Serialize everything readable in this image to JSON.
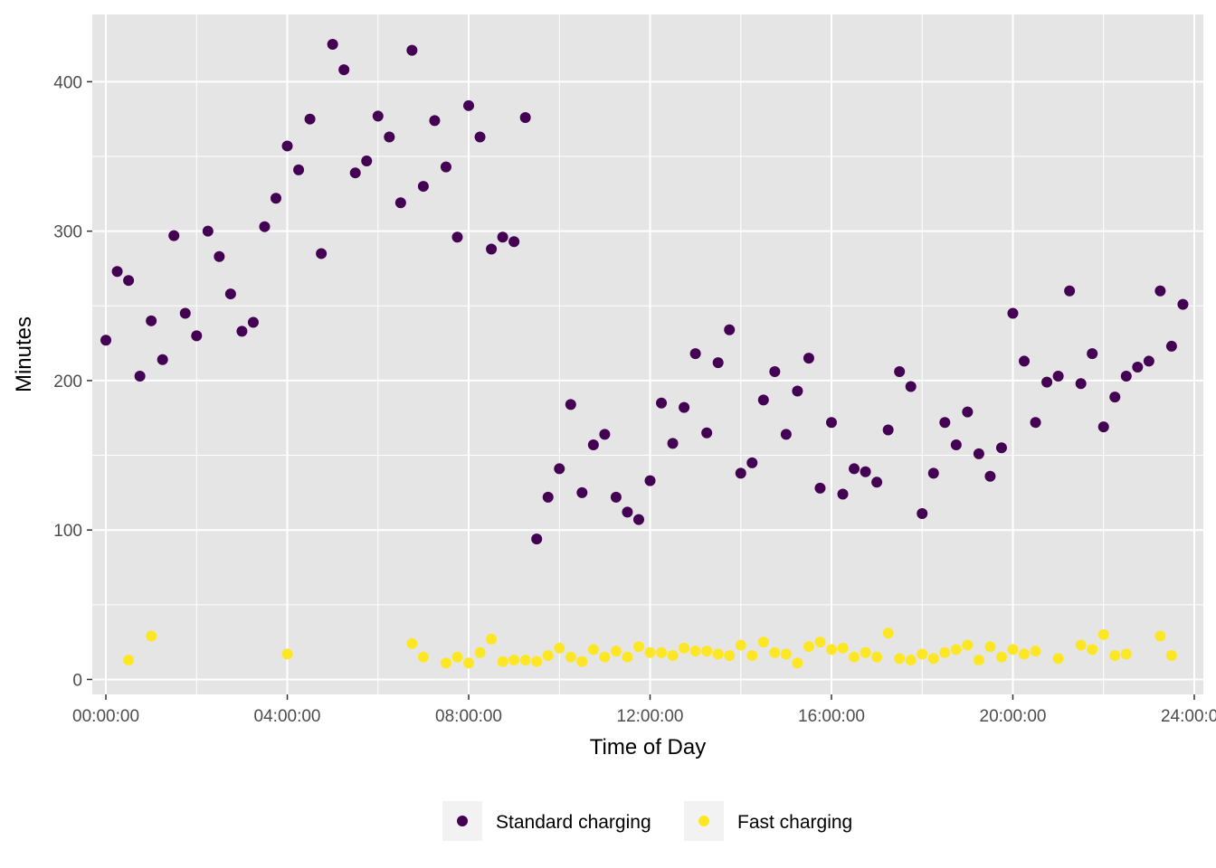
{
  "colors": {
    "panel": "#e5e5e5",
    "grid": "#ffffff",
    "tick": "#333333",
    "series_standard": "#440154",
    "series_fast": "#fde725",
    "legend_key_bg": "#f2f2f2"
  },
  "chart_data": {
    "type": "scatter",
    "title": "",
    "xlabel": "Time of Day",
    "ylabel": "Minutes",
    "x_unit": "hours since 00:00:00",
    "xlim": [
      -0.3,
      24.2
    ],
    "ylim": [
      -10,
      445
    ],
    "x_ticks": [
      {
        "value": 0,
        "label": "00:00:00"
      },
      {
        "value": 4,
        "label": "04:00:00"
      },
      {
        "value": 8,
        "label": "08:00:00"
      },
      {
        "value": 12,
        "label": "12:00:00"
      },
      {
        "value": 16,
        "label": "16:00:00"
      },
      {
        "value": 20,
        "label": "20:00:00"
      },
      {
        "value": 24,
        "label": "24:00:00"
      }
    ],
    "y_ticks": [
      {
        "value": 0,
        "label": "0"
      },
      {
        "value": 100,
        "label": "100"
      },
      {
        "value": 200,
        "label": "200"
      },
      {
        "value": 300,
        "label": "300"
      },
      {
        "value": 400,
        "label": "400"
      }
    ],
    "grid": true,
    "legend_position": "bottom",
    "series": [
      {
        "name": "Standard charging",
        "points": [
          [
            0.0,
            227
          ],
          [
            0.25,
            273
          ],
          [
            0.5,
            267
          ],
          [
            0.75,
            203
          ],
          [
            1.0,
            240
          ],
          [
            1.25,
            214
          ],
          [
            1.5,
            297
          ],
          [
            1.75,
            245
          ],
          [
            2.0,
            230
          ],
          [
            2.25,
            300
          ],
          [
            2.5,
            283
          ],
          [
            2.75,
            258
          ],
          [
            3.0,
            233
          ],
          [
            3.25,
            239
          ],
          [
            3.5,
            303
          ],
          [
            3.75,
            322
          ],
          [
            4.0,
            357
          ],
          [
            4.25,
            341
          ],
          [
            4.5,
            375
          ],
          [
            4.75,
            285
          ],
          [
            5.0,
            425
          ],
          [
            5.25,
            408
          ],
          [
            5.5,
            339
          ],
          [
            5.75,
            347
          ],
          [
            6.0,
            377
          ],
          [
            6.25,
            363
          ],
          [
            6.5,
            319
          ],
          [
            6.75,
            421
          ],
          [
            7.0,
            330
          ],
          [
            7.25,
            374
          ],
          [
            7.5,
            343
          ],
          [
            7.75,
            296
          ],
          [
            8.0,
            384
          ],
          [
            8.25,
            363
          ],
          [
            8.5,
            288
          ],
          [
            8.75,
            296
          ],
          [
            9.0,
            293
          ],
          [
            9.25,
            376
          ],
          [
            9.5,
            94
          ],
          [
            9.75,
            122
          ],
          [
            10.0,
            141
          ],
          [
            10.25,
            184
          ],
          [
            10.5,
            125
          ],
          [
            10.75,
            157
          ],
          [
            11.0,
            164
          ],
          [
            11.25,
            122
          ],
          [
            11.5,
            112
          ],
          [
            11.75,
            107
          ],
          [
            12.0,
            133
          ],
          [
            12.25,
            185
          ],
          [
            12.5,
            158
          ],
          [
            12.75,
            182
          ],
          [
            13.0,
            218
          ],
          [
            13.25,
            165
          ],
          [
            13.5,
            212
          ],
          [
            13.75,
            234
          ],
          [
            14.0,
            138
          ],
          [
            14.25,
            145
          ],
          [
            14.5,
            187
          ],
          [
            14.75,
            206
          ],
          [
            15.0,
            164
          ],
          [
            15.25,
            193
          ],
          [
            15.5,
            215
          ],
          [
            15.75,
            128
          ],
          [
            16.0,
            172
          ],
          [
            16.25,
            124
          ],
          [
            16.5,
            141
          ],
          [
            16.75,
            139
          ],
          [
            17.0,
            132
          ],
          [
            17.25,
            167
          ],
          [
            17.5,
            206
          ],
          [
            17.75,
            196
          ],
          [
            18.0,
            111
          ],
          [
            18.25,
            138
          ],
          [
            18.5,
            172
          ],
          [
            18.75,
            157
          ],
          [
            19.0,
            179
          ],
          [
            19.25,
            151
          ],
          [
            19.5,
            136
          ],
          [
            19.75,
            155
          ],
          [
            20.0,
            245
          ],
          [
            20.25,
            213
          ],
          [
            20.5,
            172
          ],
          [
            20.75,
            199
          ],
          [
            21.0,
            203
          ],
          [
            21.25,
            260
          ],
          [
            21.5,
            198
          ],
          [
            21.75,
            218
          ],
          [
            22.0,
            169
          ],
          [
            22.25,
            189
          ],
          [
            22.5,
            203
          ],
          [
            22.75,
            209
          ],
          [
            23.0,
            213
          ],
          [
            23.25,
            260
          ],
          [
            23.5,
            223
          ],
          [
            23.75,
            251
          ]
        ]
      },
      {
        "name": "Fast charging",
        "points": [
          [
            0.5,
            13
          ],
          [
            1.0,
            29
          ],
          [
            4.0,
            17
          ],
          [
            6.75,
            24
          ],
          [
            7.0,
            15
          ],
          [
            7.5,
            11
          ],
          [
            7.75,
            15
          ],
          [
            8.0,
            11
          ],
          [
            8.25,
            18
          ],
          [
            8.5,
            27
          ],
          [
            8.75,
            12
          ],
          [
            9.0,
            13
          ],
          [
            9.25,
            13
          ],
          [
            9.5,
            12
          ],
          [
            9.75,
            16
          ],
          [
            10.0,
            21
          ],
          [
            10.25,
            15
          ],
          [
            10.5,
            12
          ],
          [
            10.75,
            20
          ],
          [
            11.0,
            15
          ],
          [
            11.25,
            19
          ],
          [
            11.5,
            15
          ],
          [
            11.75,
            22
          ],
          [
            12.0,
            18
          ],
          [
            12.25,
            18
          ],
          [
            12.5,
            16
          ],
          [
            12.75,
            21
          ],
          [
            13.0,
            19
          ],
          [
            13.25,
            19
          ],
          [
            13.5,
            17
          ],
          [
            13.75,
            16
          ],
          [
            14.0,
            23
          ],
          [
            14.25,
            16
          ],
          [
            14.5,
            25
          ],
          [
            14.75,
            18
          ],
          [
            15.0,
            17
          ],
          [
            15.25,
            11
          ],
          [
            15.5,
            22
          ],
          [
            15.75,
            25
          ],
          [
            16.0,
            20
          ],
          [
            16.25,
            21
          ],
          [
            16.5,
            15
          ],
          [
            16.75,
            18
          ],
          [
            17.0,
            15
          ],
          [
            17.25,
            31
          ],
          [
            17.5,
            14
          ],
          [
            17.75,
            13
          ],
          [
            18.0,
            17
          ],
          [
            18.25,
            14
          ],
          [
            18.5,
            18
          ],
          [
            18.75,
            20
          ],
          [
            19.0,
            23
          ],
          [
            19.25,
            13
          ],
          [
            19.5,
            22
          ],
          [
            19.75,
            15
          ],
          [
            20.0,
            20
          ],
          [
            20.25,
            17
          ],
          [
            20.5,
            19
          ],
          [
            21.0,
            14
          ],
          [
            21.5,
            23
          ],
          [
            21.75,
            20
          ],
          [
            22.0,
            30
          ],
          [
            22.25,
            16
          ],
          [
            22.5,
            17
          ],
          [
            23.25,
            29
          ],
          [
            23.5,
            16
          ]
        ]
      }
    ]
  }
}
